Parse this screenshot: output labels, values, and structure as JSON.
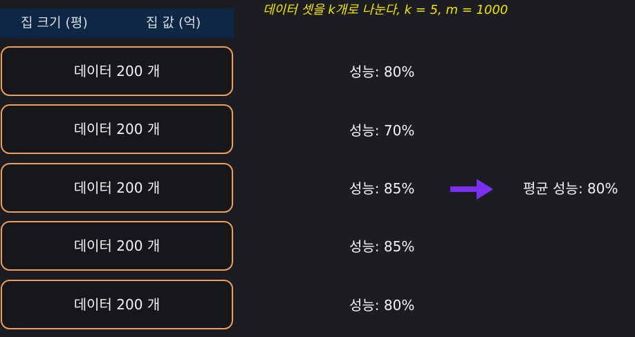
{
  "header": {
    "columns": [
      "집 크기 (평)",
      "집 값 (억)"
    ]
  },
  "annotation": "데이터 셋을 k개로 나눈다, k = 5, m = 1000",
  "folds": [
    {
      "label": "데이터 200 개",
      "score": "성능: 80%",
      "score_value": 80
    },
    {
      "label": "데이터 200 개",
      "score": "성능: 70%",
      "score_value": 70
    },
    {
      "label": "데이터 200 개",
      "score": "성능: 85%",
      "score_value": 85
    },
    {
      "label": "데이터 200 개",
      "score": "성능: 85%",
      "score_value": 85
    },
    {
      "label": "데이터 200 개",
      "score": "성능: 80%",
      "score_value": 80
    }
  ],
  "average": {
    "label": "평균 성능: 80%",
    "value": 80
  },
  "colors": {
    "background": "#1b1d22",
    "header_bg": "#0e2745",
    "box_border": "#f0a057",
    "annotation": "#f2e600",
    "arrow": "#7b2ff0"
  }
}
